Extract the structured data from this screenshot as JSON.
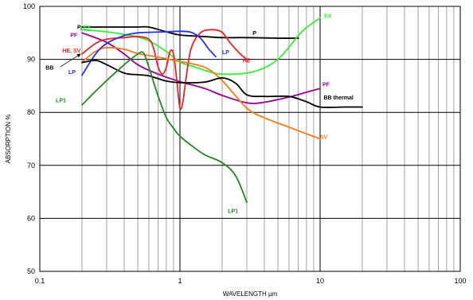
{
  "chart_data": {
    "type": "line",
    "xlabel": "WAVELENGTH µm",
    "ylabel": "ABSORPTION %",
    "xscale": "log",
    "xlim": [
      0.1,
      100
    ],
    "ylim": [
      50,
      100
    ],
    "x_ticks": [
      "0.1",
      "1",
      "10",
      "100"
    ],
    "y_ticks": [
      "50",
      "60",
      "70",
      "80",
      "90",
      "100"
    ],
    "grid": true,
    "series": [
      {
        "name": "P",
        "color": "#000000",
        "points": [
          [
            0.2,
            96.1
          ],
          [
            0.3,
            96.1
          ],
          [
            0.4,
            96.1
          ],
          [
            0.5,
            96.1
          ],
          [
            0.6,
            96.1
          ],
          [
            0.8,
            95.2
          ],
          [
            1.0,
            94.6
          ],
          [
            1.5,
            94.3
          ],
          [
            2.0,
            94.1
          ],
          [
            3.0,
            94.1
          ],
          [
            5.0,
            94.0
          ],
          [
            7.0,
            94.0
          ]
        ]
      },
      {
        "name": "EX",
        "color": "#33ee33",
        "points": [
          [
            0.2,
            95.6
          ],
          [
            0.3,
            95.2
          ],
          [
            0.4,
            94.7
          ],
          [
            0.5,
            94.2
          ],
          [
            0.6,
            93.5
          ],
          [
            0.8,
            91.5
          ],
          [
            1.0,
            89.5
          ],
          [
            1.3,
            88.5
          ],
          [
            1.6,
            87.7
          ],
          [
            2.0,
            87.2
          ],
          [
            3.0,
            87.4
          ],
          [
            4.0,
            88.4
          ],
          [
            5.0,
            90.0
          ],
          [
            6.0,
            92.3
          ],
          [
            7.0,
            94.5
          ],
          [
            8.0,
            96.0
          ],
          [
            10.0,
            97.8
          ]
        ]
      },
      {
        "name": "PF",
        "color": "#990099",
        "points": [
          [
            0.2,
            95.0
          ],
          [
            0.3,
            93.2
          ],
          [
            0.4,
            91.0
          ],
          [
            0.5,
            89.0
          ],
          [
            0.7,
            87.2
          ],
          [
            1.0,
            85.8
          ],
          [
            1.5,
            84.5
          ],
          [
            2.0,
            83.2
          ],
          [
            3.0,
            81.8
          ],
          [
            4.0,
            81.9
          ],
          [
            6.0,
            82.9
          ],
          [
            8.0,
            83.8
          ],
          [
            10.0,
            84.5
          ]
        ]
      },
      {
        "name": "HE",
        "color": "#ee2222",
        "points": [
          [
            0.2,
            91.0
          ],
          [
            0.25,
            93.0
          ],
          [
            0.3,
            93.8
          ],
          [
            0.4,
            94.1
          ],
          [
            0.5,
            94.3
          ],
          [
            0.6,
            93.8
          ],
          [
            0.65,
            92.0
          ],
          [
            0.7,
            88.5
          ],
          [
            0.75,
            87.2
          ],
          [
            0.8,
            88.5
          ],
          [
            0.85,
            91.5
          ],
          [
            0.9,
            91.0
          ],
          [
            0.95,
            86.0
          ],
          [
            1.0,
            80.8
          ],
          [
            1.05,
            82.0
          ],
          [
            1.1,
            86.0
          ],
          [
            1.2,
            92.0
          ],
          [
            1.4,
            95.0
          ],
          [
            1.7,
            95.6
          ],
          [
            2.0,
            95.1
          ],
          [
            2.3,
            93.0
          ],
          [
            2.7,
            91.0
          ],
          [
            3.0,
            90.0
          ]
        ]
      },
      {
        "name": "SV",
        "color": "#ff7711",
        "points": [
          [
            0.2,
            89.5
          ],
          [
            0.25,
            91.5
          ],
          [
            0.3,
            92.2
          ],
          [
            0.4,
            91.9
          ],
          [
            0.5,
            91.1
          ],
          [
            0.7,
            90.4
          ],
          [
            1.0,
            89.6
          ],
          [
            1.5,
            88.5
          ],
          [
            2.0,
            86.0
          ],
          [
            3.0,
            80.8
          ],
          [
            4.0,
            79.0
          ],
          [
            6.0,
            77.2
          ],
          [
            10.0,
            75.0
          ]
        ]
      },
      {
        "name": "LP",
        "color": "#2233ee",
        "points": [
          [
            0.2,
            87.0
          ],
          [
            0.25,
            91.0
          ],
          [
            0.3,
            93.0
          ],
          [
            0.4,
            94.5
          ],
          [
            0.5,
            95.0
          ],
          [
            0.6,
            95.1
          ],
          [
            0.8,
            95.2
          ],
          [
            1.0,
            95.3
          ],
          [
            1.2,
            95.1
          ],
          [
            1.4,
            94.0
          ],
          [
            1.6,
            92.0
          ],
          [
            1.8,
            90.5
          ]
        ]
      },
      {
        "name": "BB thermal",
        "color": "#000000",
        "points": [
          [
            0.2,
            89.4
          ],
          [
            0.25,
            89.8
          ],
          [
            0.3,
            89.0
          ],
          [
            0.4,
            87.4
          ],
          [
            0.5,
            87.1
          ],
          [
            0.6,
            86.9
          ],
          [
            0.8,
            85.9
          ],
          [
            1.0,
            85.6
          ],
          [
            1.5,
            85.7
          ],
          [
            2.0,
            86.5
          ],
          [
            2.5,
            85.5
          ],
          [
            3.0,
            83.3
          ],
          [
            4.0,
            83.0
          ],
          [
            6.0,
            83.0
          ],
          [
            8.0,
            82.0
          ],
          [
            10.0,
            81.0
          ],
          [
            15.0,
            81.0
          ],
          [
            20.0,
            81.0
          ]
        ]
      },
      {
        "name": "LP1",
        "color": "#228822",
        "points": [
          [
            0.2,
            81.4
          ],
          [
            0.25,
            84.0
          ],
          [
            0.3,
            86.0
          ],
          [
            0.4,
            89.0
          ],
          [
            0.5,
            91.0
          ],
          [
            0.55,
            91.2
          ],
          [
            0.6,
            88.5
          ],
          [
            0.7,
            83.0
          ],
          [
            0.8,
            79.0
          ],
          [
            0.9,
            77.0
          ],
          [
            1.0,
            75.5
          ],
          [
            1.2,
            73.8
          ],
          [
            1.5,
            72.0
          ],
          [
            2.0,
            70.5
          ],
          [
            2.5,
            68.0
          ],
          [
            3.0,
            63.0
          ]
        ]
      }
    ],
    "labels": [
      {
        "parts": [
          {
            "text": "P, ",
            "color": "#000000"
          },
          {
            "text": "EX",
            "color": "#33ee33"
          }
        ],
        "x": 0.185,
        "y": 95.7
      },
      {
        "parts": [
          {
            "text": "PF",
            "color": "#990099"
          }
        ],
        "x": 0.165,
        "y": 94.2
      },
      {
        "parts": [
          {
            "text": "HE, SV",
            "color": "#ee2222"
          }
        ],
        "x": 0.145,
        "y": 91.3
      },
      {
        "parts": [
          {
            "text": "BB",
            "color": "#000000"
          }
        ],
        "x": 0.11,
        "y": 88.1
      },
      {
        "parts": [
          {
            "text": "LP",
            "color": "#2233ee"
          }
        ],
        "x": 0.16,
        "y": 87.2
      },
      {
        "parts": [
          {
            "text": "LP1",
            "color": "#228822"
          }
        ],
        "x": 0.13,
        "y": 81.9
      },
      {
        "parts": [
          {
            "text": "P",
            "color": "#000000"
          }
        ],
        "x": 3.3,
        "y": 94.6
      },
      {
        "parts": [
          {
            "text": "EX",
            "color": "#33ee33"
          }
        ],
        "x": 10.7,
        "y": 97.8
      },
      {
        "parts": [
          {
            "text": "LP",
            "color": "#2233ee"
          }
        ],
        "x": 2.0,
        "y": 91.0
      },
      {
        "parts": [
          {
            "text": "HE",
            "color": "#ee2222"
          }
        ],
        "x": 2.8,
        "y": 89.4
      },
      {
        "parts": [
          {
            "text": "PF",
            "color": "#990099"
          }
        ],
        "x": 10.4,
        "y": 84.9
      },
      {
        "parts": [
          {
            "text": "BB thermal",
            "color": "#000000"
          }
        ],
        "x": 10.6,
        "y": 82.4
      },
      {
        "parts": [
          {
            "text": "SV",
            "color": "#ff7711"
          }
        ],
        "x": 10.0,
        "y": 75.0
      },
      {
        "parts": [
          {
            "text": "LP1",
            "color": "#228822"
          }
        ],
        "x": 2.2,
        "y": 61.0
      }
    ],
    "arrow": {
      "from": [
        0.14,
        88.6
      ],
      "to": [
        0.195,
        91.0
      ]
    }
  }
}
